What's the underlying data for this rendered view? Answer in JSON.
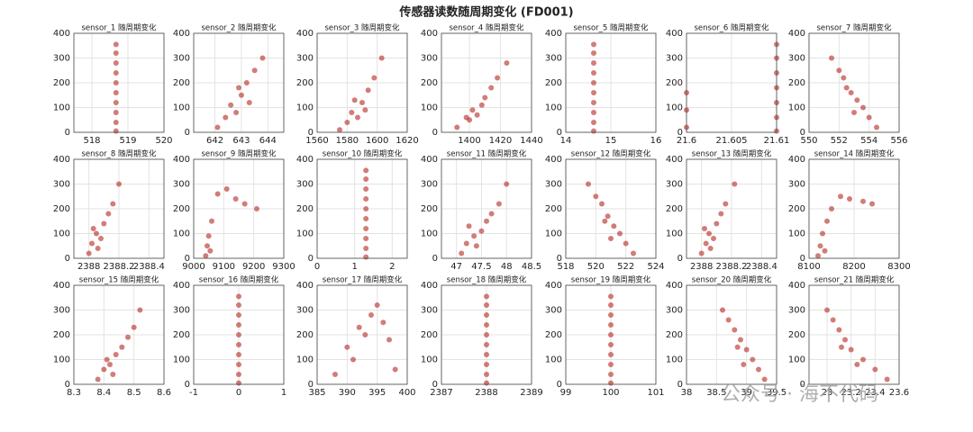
{
  "title": "传感器读数随周期变化 (FD001)",
  "watermark": "公众号 · 海不代码",
  "chart_data": [
    {
      "type": "scatter",
      "title": "sensor_1 随周期变化",
      "color": "#b3261e",
      "grid": true,
      "xlim": [
        517.5,
        520
      ],
      "xticks": [
        518,
        519,
        520
      ],
      "ylim": [
        0,
        400
      ],
      "yticks": [
        0,
        100,
        200,
        300,
        400
      ],
      "x": [
        518.67,
        518.67,
        518.67,
        518.67,
        518.67,
        518.67,
        518.67,
        518.67,
        518.67,
        518.67
      ],
      "y": [
        5,
        40,
        80,
        120,
        160,
        200,
        240,
        280,
        320,
        355
      ]
    },
    {
      "type": "scatter",
      "title": "sensor_2 随周期变化",
      "color": "#b3261e",
      "grid": true,
      "xlim": [
        641.2,
        644.6
      ],
      "xticks": [
        642,
        643,
        644
      ],
      "ylim": [
        0,
        400
      ],
      "yticks": [
        0,
        100,
        200,
        300,
        400
      ],
      "x": [
        642.1,
        642.4,
        642.6,
        642.8,
        643.0,
        643.2,
        643.5,
        643.8,
        643.3,
        642.9
      ],
      "y": [
        20,
        60,
        110,
        80,
        150,
        200,
        250,
        300,
        120,
        180
      ]
    },
    {
      "type": "scatter",
      "title": "sensor_3 随周期变化",
      "color": "#b3261e",
      "grid": true,
      "xlim": [
        1560,
        1620
      ],
      "xticks": [
        1560,
        1580,
        1600,
        1620
      ],
      "ylim": [
        0,
        400
      ],
      "yticks": [
        0,
        100,
        200,
        300,
        400
      ],
      "x": [
        1575,
        1580,
        1583,
        1587,
        1590,
        1594,
        1598,
        1603,
        1592,
        1585
      ],
      "y": [
        10,
        40,
        80,
        60,
        120,
        170,
        220,
        300,
        90,
        130
      ]
    },
    {
      "type": "scatter",
      "title": "sensor_4 随周期变化",
      "color": "#b3261e",
      "grid": true,
      "xlim": [
        1382,
        1440
      ],
      "xticks": [
        1400,
        1420,
        1440
      ],
      "ylim": [
        0,
        400
      ],
      "yticks": [
        0,
        100,
        200,
        300,
        400
      ],
      "x": [
        1392,
        1398,
        1402,
        1405,
        1410,
        1414,
        1418,
        1424,
        1408,
        1400
      ],
      "y": [
        20,
        60,
        90,
        70,
        140,
        180,
        220,
        280,
        110,
        50
      ]
    },
    {
      "type": "scatter",
      "title": "sensor_5 随周期变化",
      "color": "#b3261e",
      "grid": true,
      "xlim": [
        14,
        16
      ],
      "xticks": [
        14,
        15,
        16
      ],
      "ylim": [
        0,
        400
      ],
      "yticks": [
        0,
        100,
        200,
        300,
        400
      ],
      "x": [
        14.62,
        14.62,
        14.62,
        14.62,
        14.62,
        14.62,
        14.62,
        14.62,
        14.62,
        14.62
      ],
      "y": [
        5,
        40,
        80,
        120,
        160,
        200,
        240,
        280,
        320,
        355
      ]
    },
    {
      "type": "scatter",
      "title": "sensor_6 随周期变化",
      "color": "#b3261e",
      "grid": true,
      "xlim": [
        21.6,
        21.61
      ],
      "xticks": [
        21.6,
        21.605,
        21.61
      ],
      "ylim": [
        0,
        400
      ],
      "yticks": [
        0,
        100,
        200,
        300,
        400
      ],
      "x": [
        21.6,
        21.6,
        21.6,
        21.61,
        21.61,
        21.61,
        21.61,
        21.61,
        21.61,
        21.61
      ],
      "y": [
        20,
        90,
        160,
        5,
        60,
        120,
        180,
        240,
        300,
        355
      ]
    },
    {
      "type": "scatter",
      "title": "sensor_7 随周期变化",
      "color": "#b3261e",
      "grid": true,
      "xlim": [
        550,
        556
      ],
      "xticks": [
        550,
        552,
        554,
        556
      ],
      "ylim": [
        0,
        400
      ],
      "yticks": [
        0,
        100,
        200,
        300,
        400
      ],
      "x": [
        551.5,
        552,
        552.3,
        552.8,
        553.2,
        553.6,
        554,
        554.5,
        552.5,
        553
      ],
      "y": [
        300,
        250,
        220,
        160,
        130,
        100,
        60,
        20,
        180,
        80
      ]
    },
    {
      "type": "scatter",
      "title": "sensor_8 随周期变化",
      "color": "#b3261e",
      "grid": true,
      "xlim": [
        2387.9,
        2388.5
      ],
      "xticks": [
        2388,
        2388.2,
        2388.4
      ],
      "ylim": [
        0,
        400
      ],
      "yticks": [
        0,
        100,
        200,
        300,
        400
      ],
      "x": [
        2388.0,
        2388.02,
        2388.05,
        2388.08,
        2388.1,
        2388.13,
        2388.16,
        2388.2,
        2388.06,
        2388.03
      ],
      "y": [
        20,
        60,
        100,
        80,
        140,
        180,
        220,
        300,
        40,
        120
      ]
    },
    {
      "type": "scatter",
      "title": "sensor_9 随周期变化",
      "color": "#b3261e",
      "grid": true,
      "xlim": [
        9000,
        9300
      ],
      "xticks": [
        9000,
        9100,
        9200,
        9300
      ],
      "ylim": [
        0,
        400
      ],
      "yticks": [
        0,
        100,
        200,
        300,
        400
      ],
      "x": [
        9040,
        9045,
        9050,
        9055,
        9060,
        9080,
        9110,
        9140,
        9170,
        9210
      ],
      "y": [
        10,
        50,
        90,
        30,
        150,
        260,
        280,
        240,
        220,
        200
      ]
    },
    {
      "type": "scatter",
      "title": "sensor_10 随周期变化",
      "color": "#b3261e",
      "grid": true,
      "xlim": [
        0,
        2.4
      ],
      "xticks": [
        0,
        1,
        2
      ],
      "ylim": [
        0,
        400
      ],
      "yticks": [
        0,
        100,
        200,
        300,
        400
      ],
      "x": [
        1.3,
        1.3,
        1.3,
        1.3,
        1.3,
        1.3,
        1.3,
        1.3,
        1.3,
        1.3
      ],
      "y": [
        5,
        40,
        80,
        120,
        160,
        200,
        240,
        280,
        320,
        355
      ]
    },
    {
      "type": "scatter",
      "title": "sensor_11 随周期变化",
      "color": "#b3261e",
      "grid": true,
      "xlim": [
        46.7,
        48.5
      ],
      "xticks": [
        47,
        47.5,
        48,
        48.5
      ],
      "ylim": [
        0,
        400
      ],
      "yticks": [
        0,
        100,
        200,
        300,
        400
      ],
      "x": [
        47.1,
        47.2,
        47.35,
        47.5,
        47.6,
        47.7,
        47.85,
        48,
        47.4,
        47.25
      ],
      "y": [
        20,
        60,
        90,
        110,
        150,
        180,
        220,
        300,
        50,
        130
      ]
    },
    {
      "type": "scatter",
      "title": "sensor_12 随周期变化",
      "color": "#b3261e",
      "grid": true,
      "xlim": [
        518,
        524
      ],
      "xticks": [
        518,
        520,
        522,
        524
      ],
      "ylim": [
        0,
        400
      ],
      "yticks": [
        0,
        100,
        200,
        300,
        400
      ],
      "x": [
        519.5,
        520,
        520.4,
        520.8,
        521.2,
        521.6,
        522,
        522.5,
        521,
        520.6
      ],
      "y": [
        300,
        250,
        220,
        170,
        130,
        100,
        60,
        20,
        80,
        150
      ]
    },
    {
      "type": "scatter",
      "title": "sensor_13 随周期变化",
      "color": "#b3261e",
      "grid": true,
      "xlim": [
        2387.9,
        2388.5
      ],
      "xticks": [
        2388,
        2388.2,
        2388.4
      ],
      "ylim": [
        0,
        400
      ],
      "yticks": [
        0,
        100,
        200,
        300,
        400
      ],
      "x": [
        2388.0,
        2388.03,
        2388.05,
        2388.08,
        2388.1,
        2388.13,
        2388.16,
        2388.22,
        2388.06,
        2388.02
      ],
      "y": [
        20,
        60,
        100,
        80,
        140,
        180,
        220,
        300,
        40,
        120
      ]
    },
    {
      "type": "scatter",
      "title": "sensor_14 随周期变化",
      "color": "#b3261e",
      "grid": true,
      "xlim": [
        8100,
        8300
      ],
      "xticks": [
        8100,
        8200,
        8300
      ],
      "ylim": [
        0,
        400
      ],
      "yticks": [
        0,
        100,
        200,
        300,
        400
      ],
      "x": [
        8120,
        8125,
        8130,
        8135,
        8150,
        8170,
        8190,
        8220,
        8240,
        8140
      ],
      "y": [
        10,
        50,
        100,
        30,
        200,
        250,
        240,
        230,
        220,
        150
      ]
    },
    {
      "type": "scatter",
      "title": "sensor_15 随周期变化",
      "color": "#b3261e",
      "grid": true,
      "xlim": [
        8.3,
        8.6
      ],
      "xticks": [
        8.3,
        8.4,
        8.5,
        8.6
      ],
      "ylim": [
        0,
        400
      ],
      "yticks": [
        0,
        100,
        200,
        300,
        400
      ],
      "x": [
        8.38,
        8.4,
        8.42,
        8.44,
        8.46,
        8.48,
        8.5,
        8.52,
        8.43,
        8.41
      ],
      "y": [
        20,
        60,
        80,
        120,
        150,
        190,
        230,
        300,
        40,
        100
      ]
    },
    {
      "type": "scatter",
      "title": "sensor_16 随周期变化",
      "color": "#b3261e",
      "grid": true,
      "xlim": [
        -1,
        1
      ],
      "xticks": [
        -1,
        0,
        1
      ],
      "ylim": [
        0,
        400
      ],
      "yticks": [
        0,
        100,
        200,
        300,
        400
      ],
      "x": [
        0,
        0,
        0,
        0,
        0,
        0,
        0,
        0,
        0,
        0
      ],
      "y": [
        5,
        40,
        80,
        120,
        160,
        200,
        240,
        280,
        320,
        355
      ]
    },
    {
      "type": "scatter",
      "title": "sensor_17 随周期变化",
      "color": "#b3261e",
      "grid": true,
      "xlim": [
        385,
        400
      ],
      "xticks": [
        385,
        390,
        395,
        400
      ],
      "ylim": [
        0,
        400
      ],
      "yticks": [
        0,
        100,
        200,
        300,
        400
      ],
      "x": [
        388,
        390,
        391,
        392,
        393,
        394,
        395,
        396,
        397,
        398
      ],
      "y": [
        40,
        150,
        100,
        230,
        200,
        280,
        320,
        250,
        180,
        60
      ]
    },
    {
      "type": "scatter",
      "title": "sensor_18 随周期变化",
      "color": "#b3261e",
      "grid": true,
      "xlim": [
        2387,
        2389
      ],
      "xticks": [
        2387,
        2388,
        2389
      ],
      "ylim": [
        0,
        400
      ],
      "yticks": [
        0,
        100,
        200,
        300,
        400
      ],
      "x": [
        2388,
        2388,
        2388,
        2388,
        2388,
        2388,
        2388,
        2388,
        2388,
        2388
      ],
      "y": [
        5,
        40,
        80,
        120,
        160,
        200,
        240,
        280,
        320,
        355
      ]
    },
    {
      "type": "scatter",
      "title": "sensor_19 随周期变化",
      "color": "#b3261e",
      "grid": true,
      "xlim": [
        99,
        101
      ],
      "xticks": [
        99,
        100,
        101
      ],
      "ylim": [
        0,
        400
      ],
      "yticks": [
        0,
        100,
        200,
        300,
        400
      ],
      "x": [
        100,
        100,
        100,
        100,
        100,
        100,
        100,
        100,
        100,
        100
      ],
      "y": [
        5,
        40,
        80,
        120,
        160,
        200,
        240,
        280,
        320,
        355
      ]
    },
    {
      "type": "scatter",
      "title": "sensor_20 随周期变化",
      "color": "#b3261e",
      "grid": true,
      "xlim": [
        38,
        39.5
      ],
      "xticks": [
        38,
        38.5,
        39,
        39.5
      ],
      "ylim": [
        0,
        400
      ],
      "yticks": [
        0,
        100,
        200,
        300,
        400
      ],
      "x": [
        38.6,
        38.7,
        38.8,
        38.9,
        39.0,
        39.1,
        39.2,
        39.3,
        38.95,
        38.85
      ],
      "y": [
        300,
        260,
        220,
        180,
        140,
        100,
        60,
        20,
        80,
        150
      ]
    },
    {
      "type": "scatter",
      "title": "sensor_21 随周期变化",
      "color": "#b3261e",
      "grid": true,
      "xlim": [
        22.85,
        23.6
      ],
      "xticks": [
        23,
        23.2,
        23.4,
        23.6
      ],
      "ylim": [
        0,
        400
      ],
      "yticks": [
        0,
        100,
        200,
        300,
        400
      ],
      "x": [
        23.0,
        23.05,
        23.1,
        23.15,
        23.2,
        23.3,
        23.4,
        23.5,
        23.25,
        23.12
      ],
      "y": [
        300,
        260,
        220,
        180,
        140,
        100,
        60,
        20,
        80,
        150
      ]
    }
  ]
}
